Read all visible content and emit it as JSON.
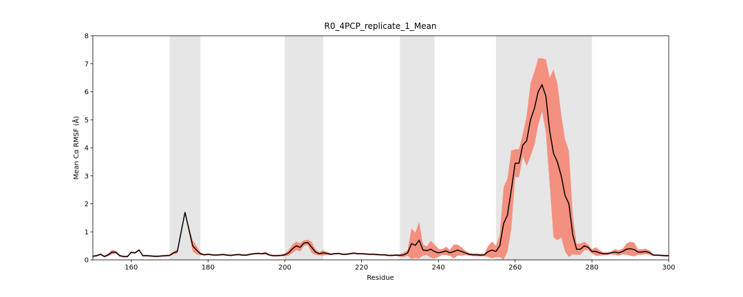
{
  "chart_data": {
    "type": "line",
    "title": "R0_4PCP_replicate_1_Mean",
    "x_label": "Residue",
    "y_label": "Mean Cα RMSF (Å)",
    "xlim": [
      150,
      300
    ],
    "ylim": [
      0,
      8
    ],
    "xticks": [
      160,
      180,
      200,
      220,
      240,
      260,
      280,
      300
    ],
    "yticks": [
      0,
      1,
      2,
      3,
      4,
      5,
      6,
      7,
      8
    ],
    "highlight_ranges": [
      [
        170,
        178
      ],
      [
        200,
        210
      ],
      [
        230,
        239
      ],
      [
        255,
        280
      ]
    ],
    "highlight_color": "#e6e6e6",
    "x": [
      150,
      151,
      152,
      153,
      154,
      155,
      156,
      157,
      158,
      159,
      160,
      161,
      162,
      163,
      164,
      165,
      166,
      167,
      168,
      169,
      170,
      171,
      172,
      173,
      174,
      175,
      176,
      177,
      178,
      179,
      180,
      181,
      182,
      183,
      184,
      185,
      186,
      187,
      188,
      189,
      190,
      191,
      192,
      193,
      194,
      195,
      196,
      197,
      198,
      199,
      200,
      201,
      202,
      203,
      204,
      205,
      206,
      207,
      208,
      209,
      210,
      211,
      212,
      213,
      214,
      215,
      216,
      217,
      218,
      219,
      220,
      221,
      222,
      223,
      224,
      225,
      226,
      227,
      228,
      229,
      230,
      231,
      232,
      233,
      234,
      235,
      236,
      237,
      238,
      239,
      240,
      241,
      242,
      243,
      244,
      245,
      246,
      247,
      248,
      249,
      250,
      251,
      252,
      253,
      254,
      255,
      256,
      257,
      258,
      259,
      260,
      261,
      262,
      263,
      264,
      265,
      266,
      267,
      268,
      269,
      270,
      271,
      272,
      273,
      274,
      275,
      276,
      277,
      278,
      279,
      280,
      281,
      282,
      283,
      284,
      285,
      286,
      287,
      288,
      289,
      290,
      291,
      292,
      293,
      294,
      295,
      296,
      297,
      298,
      299,
      300
    ],
    "series": [
      {
        "color": "#000000",
        "band_color": "#f4907f",
        "values": [
          0.13,
          0.15,
          0.2,
          0.12,
          0.18,
          0.28,
          0.27,
          0.15,
          0.12,
          0.12,
          0.27,
          0.25,
          0.35,
          0.15,
          0.15,
          0.14,
          0.13,
          0.13,
          0.14,
          0.15,
          0.16,
          0.25,
          0.3,
          1.0,
          1.7,
          1.1,
          0.5,
          0.35,
          0.22,
          0.18,
          0.2,
          0.18,
          0.17,
          0.18,
          0.19,
          0.17,
          0.16,
          0.18,
          0.19,
          0.17,
          0.17,
          0.2,
          0.22,
          0.23,
          0.22,
          0.24,
          0.17,
          0.15,
          0.15,
          0.16,
          0.18,
          0.25,
          0.4,
          0.5,
          0.45,
          0.6,
          0.62,
          0.45,
          0.28,
          0.22,
          0.25,
          0.23,
          0.2,
          0.22,
          0.23,
          0.2,
          0.2,
          0.22,
          0.24,
          0.22,
          0.22,
          0.21,
          0.2,
          0.2,
          0.19,
          0.18,
          0.18,
          0.16,
          0.16,
          0.17,
          0.16,
          0.18,
          0.25,
          0.58,
          0.52,
          0.7,
          0.35,
          0.33,
          0.38,
          0.3,
          0.25,
          0.28,
          0.32,
          0.25,
          0.3,
          0.35,
          0.3,
          0.25,
          0.2,
          0.18,
          0.18,
          0.17,
          0.18,
          0.3,
          0.35,
          0.3,
          0.5,
          1.3,
          1.6,
          2.5,
          3.45,
          3.45,
          4.1,
          4.25,
          5.0,
          5.4,
          6.0,
          6.25,
          5.85,
          4.6,
          3.8,
          3.5,
          3.0,
          2.3,
          2.0,
          0.9,
          0.38,
          0.38,
          0.5,
          0.45,
          0.3,
          0.3,
          0.25,
          0.22,
          0.22,
          0.25,
          0.28,
          0.25,
          0.3,
          0.38,
          0.4,
          0.37,
          0.28,
          0.28,
          0.3,
          0.26,
          0.17,
          0.17,
          0.16,
          0.15,
          0.15
        ],
        "std": [
          0.03,
          0.03,
          0.03,
          0.03,
          0.04,
          0.08,
          0.05,
          0.03,
          0.03,
          0.03,
          0.03,
          0.03,
          0.03,
          0.03,
          0.03,
          0.03,
          0.03,
          0.03,
          0.03,
          0.03,
          0.03,
          0.05,
          0.08,
          0.1,
          0.05,
          0.1,
          0.2,
          0.15,
          0.05,
          0.03,
          0.03,
          0.03,
          0.03,
          0.03,
          0.03,
          0.03,
          0.03,
          0.03,
          0.03,
          0.03,
          0.03,
          0.03,
          0.03,
          0.03,
          0.03,
          0.05,
          0.03,
          0.03,
          0.03,
          0.03,
          0.05,
          0.1,
          0.15,
          0.15,
          0.15,
          0.1,
          0.1,
          0.2,
          0.1,
          0.05,
          0.1,
          0.05,
          0.03,
          0.03,
          0.03,
          0.03,
          0.03,
          0.03,
          0.03,
          0.03,
          0.03,
          0.03,
          0.03,
          0.03,
          0.03,
          0.03,
          0.03,
          0.03,
          0.03,
          0.03,
          0.05,
          0.08,
          0.1,
          0.55,
          0.45,
          0.65,
          0.2,
          0.15,
          0.3,
          0.25,
          0.15,
          0.1,
          0.15,
          0.1,
          0.25,
          0.2,
          0.15,
          0.08,
          0.05,
          0.05,
          0.05,
          0.05,
          0.05,
          0.2,
          0.3,
          0.2,
          0.4,
          1.3,
          1.3,
          1.4,
          0.5,
          0.5,
          0.4,
          0.9,
          1.3,
          1.3,
          1.2,
          0.95,
          1.3,
          1.9,
          3.0,
          2.8,
          2.2,
          2.0,
          1.9,
          0.7,
          0.2,
          0.2,
          0.15,
          0.1,
          0.08,
          0.15,
          0.1,
          0.05,
          0.05,
          0.05,
          0.1,
          0.1,
          0.1,
          0.2,
          0.25,
          0.25,
          0.1,
          0.1,
          0.1,
          0.08,
          0.03,
          0.03,
          0.03,
          0.03,
          0.03
        ]
      }
    ]
  }
}
